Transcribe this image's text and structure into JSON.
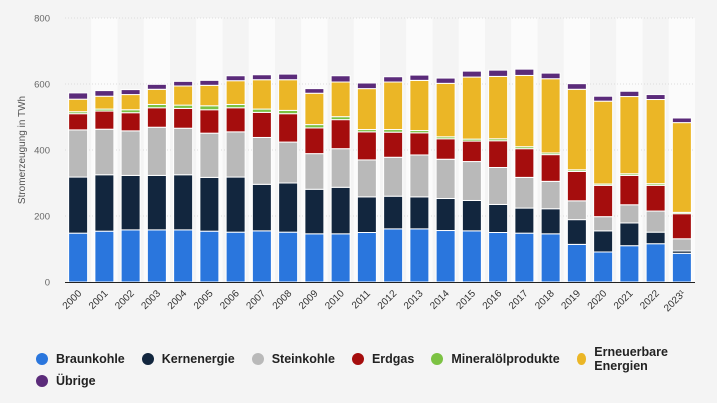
{
  "chart_data": {
    "type": "bar",
    "stacked": true,
    "title": "",
    "xlabel": "",
    "ylabel": "Stromerzeugung in TWh",
    "ylim": [
      0,
      800
    ],
    "yticks": [
      0,
      200,
      400,
      600,
      800
    ],
    "grid": true,
    "legend_position": "bottom",
    "categories": [
      "2000",
      "2001",
      "2002",
      "2003",
      "2004",
      "2005",
      "2006",
      "2007",
      "2008",
      "2009",
      "2010",
      "2011",
      "2012",
      "2013",
      "2014",
      "2015",
      "2016",
      "2017",
      "2018",
      "2019",
      "2020",
      "2021",
      "2022",
      "2023¹"
    ],
    "series": [
      {
        "name": "Braunkohle",
        "color": "#2a76dd",
        "values": [
          148,
          154,
          158,
          158,
          158,
          154,
          151,
          155,
          151,
          146,
          146,
          150,
          161,
          161,
          156,
          155,
          150,
          148,
          146,
          114,
          91,
          110,
          116,
          87
        ]
      },
      {
        "name": "Kernenergie",
        "color": "#12263e",
        "values": [
          170,
          171,
          165,
          165,
          167,
          163,
          167,
          141,
          149,
          135,
          141,
          108,
          99,
          97,
          97,
          92,
          85,
          76,
          76,
          75,
          64,
          69,
          35,
          7
        ]
      },
      {
        "name": "Steinkohle",
        "color": "#b9b9b9",
        "values": [
          143,
          138,
          135,
          146,
          141,
          134,
          137,
          142,
          124,
          108,
          117,
          112,
          118,
          127,
          119,
          118,
          112,
          93,
          83,
          57,
          43,
          55,
          64,
          37
        ]
      },
      {
        "name": "Erdgas",
        "color": "#a50d0d",
        "values": [
          49,
          55,
          55,
          59,
          60,
          71,
          73,
          76,
          86,
          78,
          88,
          85,
          76,
          67,
          62,
          62,
          81,
          87,
          81,
          89,
          95,
          89,
          78,
          76
        ]
      },
      {
        "name": "Mineralölprodukte",
        "color": "#7cc243",
        "values": [
          6,
          6,
          9,
          10,
          10,
          12,
          10,
          10,
          10,
          10,
          9,
          7,
          8,
          7,
          6,
          6,
          6,
          6,
          5,
          5,
          4,
          5,
          5,
          4
        ]
      },
      {
        "name": "Erneuerbare Energien",
        "color": "#ebb626",
        "values": [
          38,
          39,
          46,
          46,
          58,
          62,
          72,
          89,
          93,
          95,
          105,
          124,
          144,
          152,
          162,
          188,
          189,
          216,
          225,
          244,
          251,
          234,
          255,
          272
        ]
      },
      {
        "name": "Übrige",
        "color": "#5b2b7a",
        "values": [
          19,
          17,
          15,
          15,
          14,
          15,
          15,
          15,
          17,
          14,
          19,
          17,
          16,
          16,
          16,
          18,
          19,
          19,
          17,
          17,
          15,
          16,
          15,
          14
        ]
      }
    ]
  }
}
